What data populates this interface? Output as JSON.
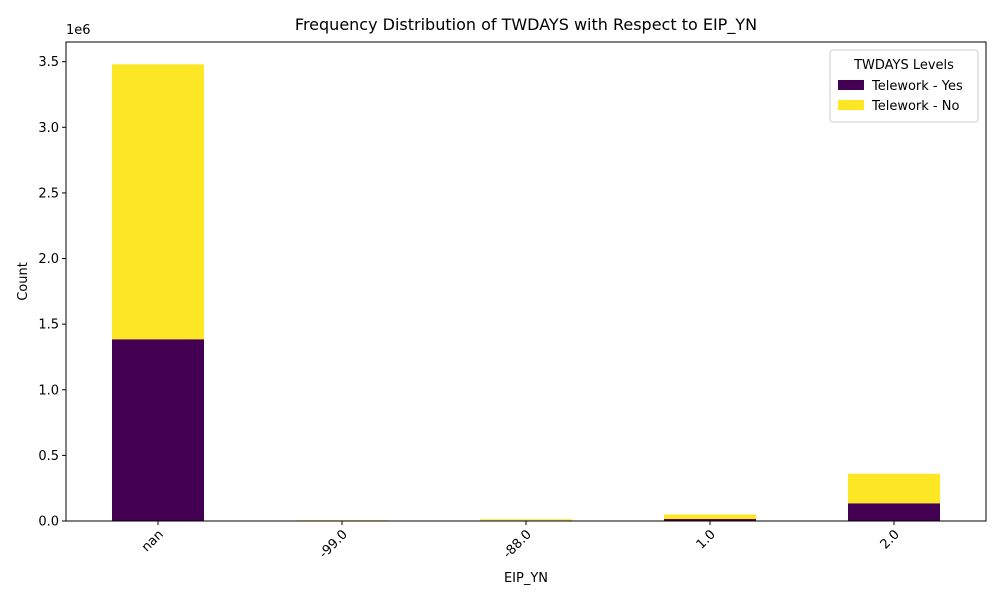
{
  "chart_data": {
    "type": "bar",
    "stacked": true,
    "title": "Frequency Distribution of TWDAYS with Respect to EIP_YN",
    "xlabel": "EIP_YN",
    "ylabel": "Count",
    "y_multiplier_label": "1e6",
    "categories": [
      "nan",
      "-99.0",
      "-88.0",
      "1.0",
      "2.0"
    ],
    "series": [
      {
        "name": "Telework - Yes",
        "color": "#440154",
        "values": [
          1385000,
          1500,
          5000,
          15000,
          135000
        ]
      },
      {
        "name": "Telework - No",
        "color": "#fde725",
        "values": [
          2095000,
          4000,
          8000,
          35000,
          225000
        ]
      }
    ],
    "ylim": [
      0,
      3650000
    ],
    "yticks": [
      0,
      0.5,
      1.0,
      1.5,
      2.0,
      2.5,
      3.0,
      3.5
    ],
    "ytick_scale": 1000000,
    "xtick_rotation": 45,
    "legend": {
      "title": "TWDAYS Levels",
      "placement": "top-right"
    },
    "grid": false
  }
}
